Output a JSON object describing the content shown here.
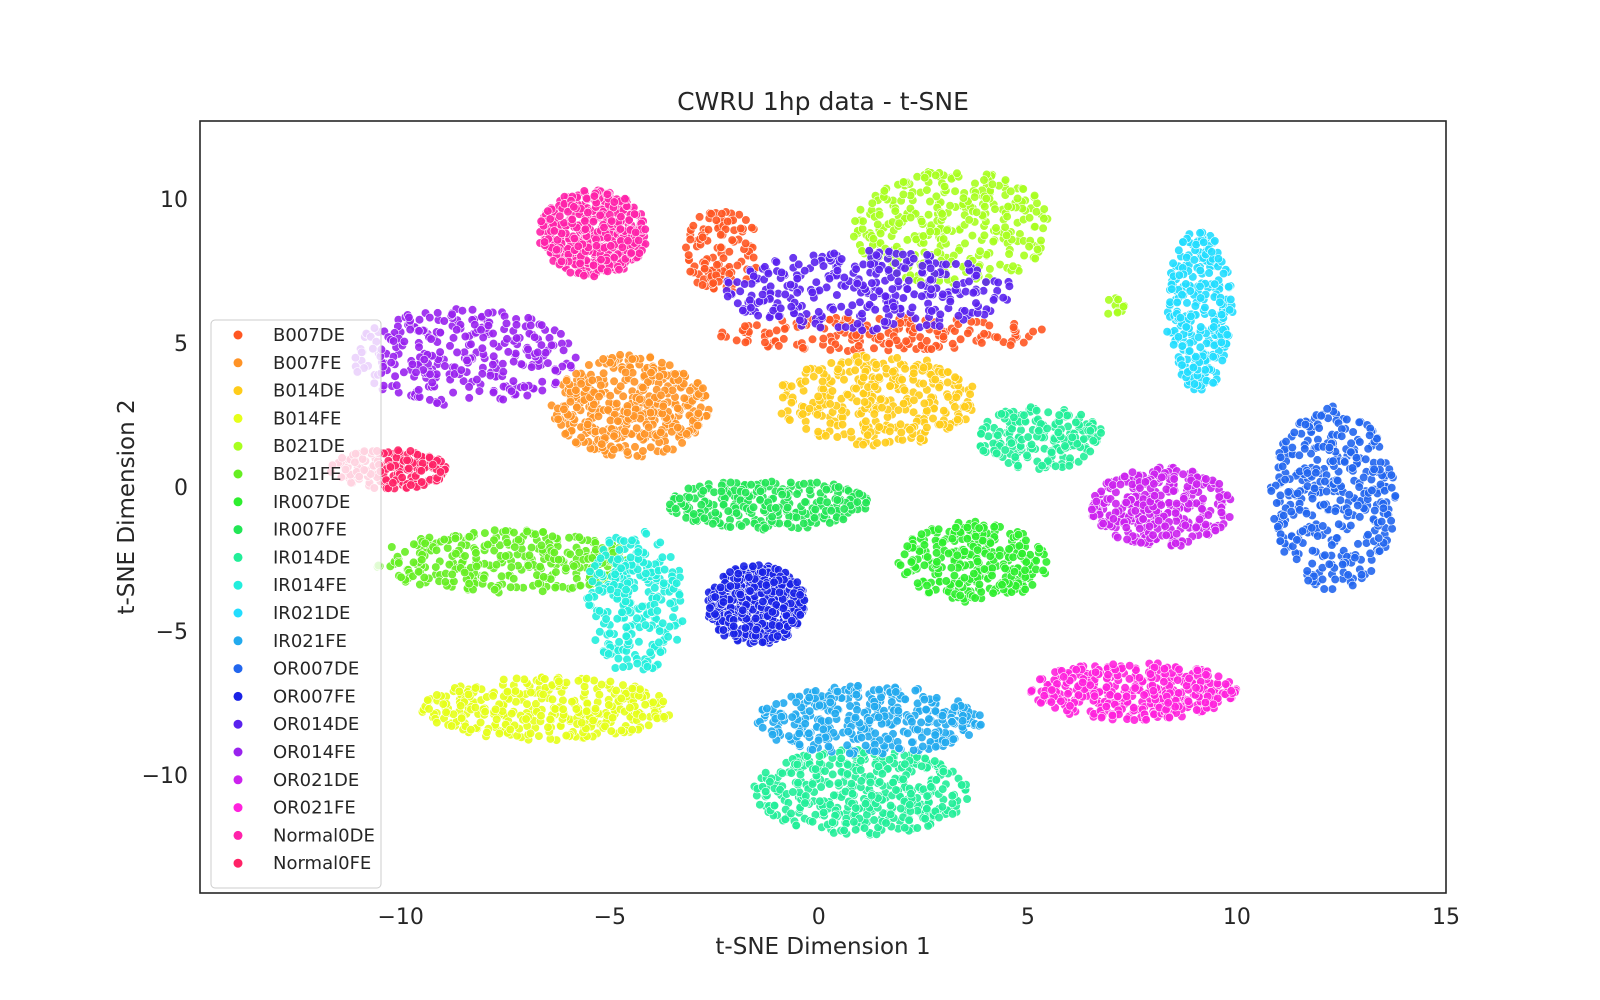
{
  "chart_data": {
    "type": "scatter",
    "title": "CWRU 1hp data - t-SNE",
    "xlabel": "t-SNE Dimension 1",
    "ylabel": "t-SNE Dimension 2",
    "xlim": [
      -14.8,
      15
    ],
    "ylim": [
      -14.1,
      12.7
    ],
    "xticks": [
      -10,
      -5,
      0,
      5,
      10,
      15
    ],
    "yticks": [
      -10,
      -5,
      0,
      5,
      10
    ],
    "xtick_labels": [
      "−10",
      "−5",
      "0",
      "5",
      "10",
      "15"
    ],
    "ytick_labels": [
      "−10",
      "−5",
      "0",
      "5",
      "10"
    ],
    "grid": false,
    "legend_position": "left",
    "series": [
      {
        "name": "B007DE",
        "color": "#ff5722",
        "clusters": [
          {
            "cx": -2.3,
            "cy": 8.2,
            "rx": 0.9,
            "ry": 1.5,
            "n": 110
          },
          {
            "cx": 1.5,
            "cy": 5.3,
            "rx": 4.0,
            "ry": 0.6,
            "n": 170
          }
        ]
      },
      {
        "name": "B007FE",
        "color": "#ff9326",
        "clusters": [
          {
            "cx": -4.5,
            "cy": 2.8,
            "rx": 1.9,
            "ry": 1.8,
            "n": 420
          }
        ]
      },
      {
        "name": "B014DE",
        "color": "#ffcc1a",
        "clusters": [
          {
            "cx": 1.4,
            "cy": 3.0,
            "rx": 2.4,
            "ry": 1.6,
            "n": 330
          }
        ]
      },
      {
        "name": "B014FE",
        "color": "#e6ff1a",
        "clusters": [
          {
            "cx": -6.5,
            "cy": -7.7,
            "rx": 3.0,
            "ry": 1.1,
            "n": 360
          }
        ]
      },
      {
        "name": "B021DE",
        "color": "#a8ff1f",
        "clusters": [
          {
            "cx": 3.2,
            "cy": 9.0,
            "rx": 2.4,
            "ry": 2.0,
            "n": 330
          },
          {
            "cx": 7.0,
            "cy": 6.3,
            "rx": 0.4,
            "ry": 0.3,
            "n": 12
          }
        ]
      },
      {
        "name": "B021FE",
        "color": "#66ee22",
        "clusters": [
          {
            "cx": -7.5,
            "cy": -2.6,
            "rx": 3.1,
            "ry": 1.1,
            "n": 320
          }
        ]
      },
      {
        "name": "IR007DE",
        "color": "#2eee2e",
        "clusters": [
          {
            "cx": 3.7,
            "cy": -2.6,
            "rx": 1.8,
            "ry": 1.4,
            "n": 300
          }
        ]
      },
      {
        "name": "IR007FE",
        "color": "#22e655",
        "clusters": [
          {
            "cx": -1.2,
            "cy": -0.6,
            "rx": 2.4,
            "ry": 0.9,
            "n": 270
          }
        ]
      },
      {
        "name": "IR014DE",
        "color": "#22ee99",
        "clusters": [
          {
            "cx": 5.3,
            "cy": 1.7,
            "rx": 1.5,
            "ry": 1.1,
            "n": 200
          },
          {
            "cx": 1.0,
            "cy": -10.6,
            "rx": 2.6,
            "ry": 1.5,
            "n": 420
          }
        ]
      },
      {
        "name": "IR014FE",
        "color": "#22eedd",
        "clusters": [
          {
            "cx": -4.4,
            "cy": -4.0,
            "rx": 1.2,
            "ry": 2.5,
            "n": 270
          }
        ]
      },
      {
        "name": "IR021DE",
        "color": "#22ddff",
        "clusters": [
          {
            "cx": 9.1,
            "cy": 6.1,
            "rx": 0.8,
            "ry": 2.8,
            "n": 290
          }
        ]
      },
      {
        "name": "IR021FE",
        "color": "#22aaee",
        "clusters": [
          {
            "cx": 1.2,
            "cy": -8.1,
            "rx": 2.7,
            "ry": 1.2,
            "n": 350
          }
        ]
      },
      {
        "name": "OR007DE",
        "color": "#2266ee",
        "clusters": [
          {
            "cx": 12.3,
            "cy": -0.4,
            "rx": 1.5,
            "ry": 3.2,
            "n": 380
          }
        ]
      },
      {
        "name": "OR007FE",
        "color": "#1a22e6",
        "clusters": [
          {
            "cx": -1.5,
            "cy": -4.1,
            "rx": 1.2,
            "ry": 1.4,
            "n": 450
          }
        ]
      },
      {
        "name": "OR014DE",
        "color": "#5a22ee",
        "clusters": [
          {
            "cx": 1.2,
            "cy": 6.8,
            "rx": 3.5,
            "ry": 1.4,
            "n": 330
          }
        ]
      },
      {
        "name": "OR014FE",
        "color": "#9922ee",
        "clusters": [
          {
            "cx": -8.5,
            "cy": 4.5,
            "rx": 2.7,
            "ry": 1.7,
            "n": 300
          }
        ]
      },
      {
        "name": "OR021DE",
        "color": "#cc22ee",
        "clusters": [
          {
            "cx": 8.2,
            "cy": -0.7,
            "rx": 1.7,
            "ry": 1.4,
            "n": 330
          }
        ]
      },
      {
        "name": "OR021FE",
        "color": "#ff22dd",
        "clusters": [
          {
            "cx": 7.5,
            "cy": -7.1,
            "rx": 2.5,
            "ry": 1.0,
            "n": 400
          }
        ]
      },
      {
        "name": "Normal0DE",
        "color": "#ff22aa",
        "clusters": [
          {
            "cx": -5.4,
            "cy": 8.8,
            "rx": 1.3,
            "ry": 1.5,
            "n": 470
          }
        ]
      },
      {
        "name": "Normal0FE",
        "color": "#ff2266",
        "clusters": [
          {
            "cx": -10.3,
            "cy": 0.6,
            "rx": 1.4,
            "ry": 0.7,
            "n": 190
          }
        ]
      }
    ]
  }
}
